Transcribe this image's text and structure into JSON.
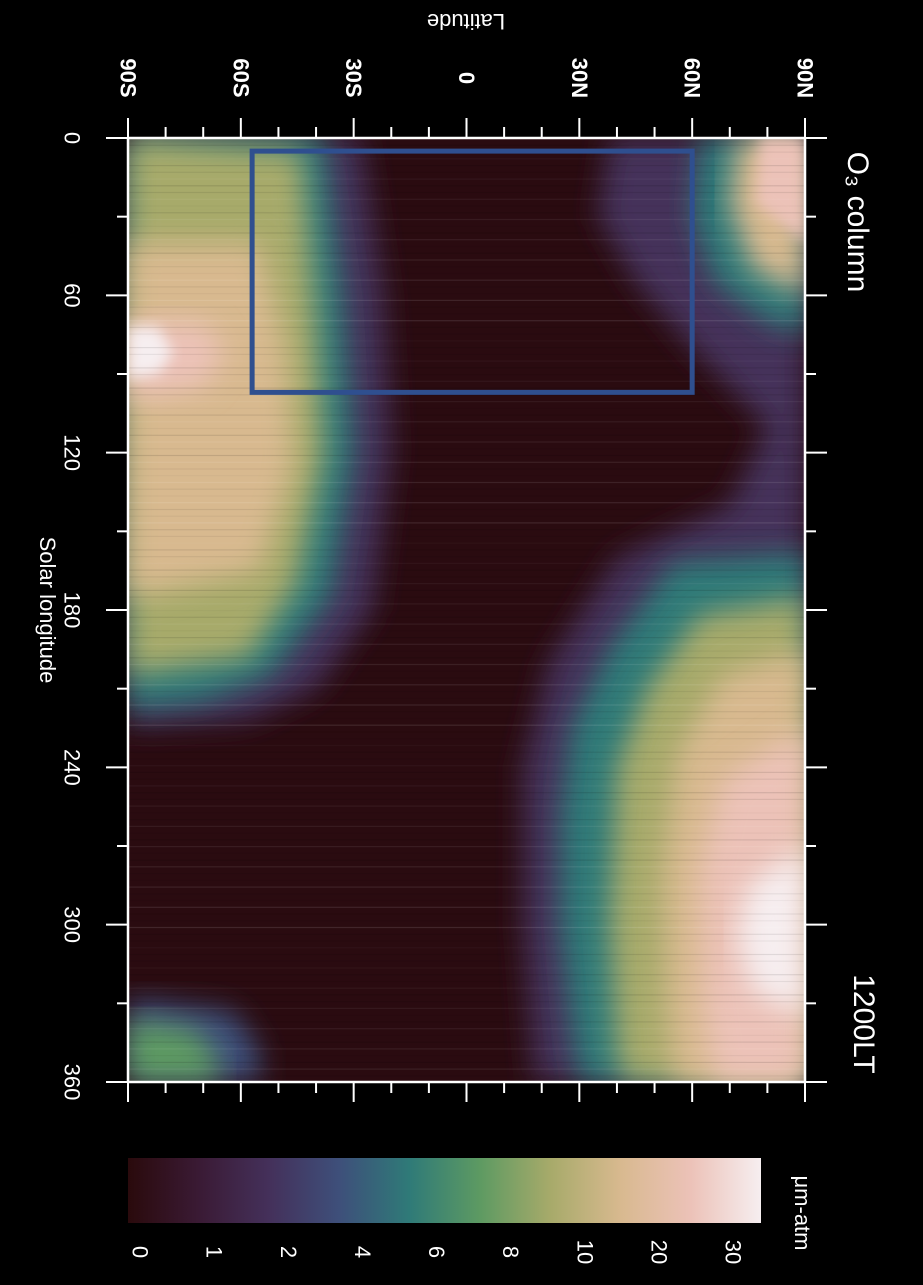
{
  "chart_data": {
    "type": "heatmap",
    "title": "O₃ column",
    "subtitle": "1200LT",
    "xlabel": "Solar longitude",
    "ylabel": "Latitude",
    "xlim": [
      0,
      360
    ],
    "ylim": [
      -90,
      90
    ],
    "x_ticks": [
      "0",
      "60",
      "120",
      "180",
      "240",
      "300",
      "360"
    ],
    "y_ticks": [
      "90S",
      "60S",
      "30S",
      "0",
      "30N",
      "60N",
      "90N"
    ],
    "colorbar": {
      "label": "μm-atm",
      "ticks": [
        "0",
        "1",
        "2",
        "4",
        "6",
        "8",
        "10",
        "20",
        "30"
      ],
      "colors": [
        "#2a0a0c",
        "#3a1a34",
        "#44305a",
        "#3e4f7a",
        "#2f7a78",
        "#5d9a62",
        "#a7aa6a",
        "#d8b98f",
        "#ecc2b8",
        "#f6eef0"
      ]
    },
    "highlight_box": {
      "x_range": [
        5,
        97
      ],
      "y_range": [
        -57,
        60
      ],
      "color": "#2f4f8f"
    },
    "features": [
      {
        "region": "southern polar maximum",
        "ls_range": [
          0,
          215
        ],
        "lat_range": [
          -90,
          -35
        ],
        "peak_ls": 80,
        "peak_value_um_atm": 30
      },
      {
        "region": "northern polar maximum (early)",
        "ls_range": [
          0,
          90
        ],
        "lat_range": [
          70,
          90
        ],
        "peak_value_um_atm": 25
      },
      {
        "region": "northern polar maximum (late)",
        "ls_range": [
          165,
          360
        ],
        "lat_range": [
          40,
          90
        ],
        "peak_ls": 300,
        "peak_value_um_atm": 35
      },
      {
        "region": "southern polar recovery",
        "ls_range": [
          335,
          360
        ],
        "lat_range": [
          -90,
          -55
        ],
        "peak_value_um_atm": 6
      },
      {
        "region": "low latitudes",
        "ls_range": [
          0,
          360
        ],
        "lat_range": [
          -30,
          30
        ],
        "peak_value_um_atm": 1
      }
    ]
  }
}
